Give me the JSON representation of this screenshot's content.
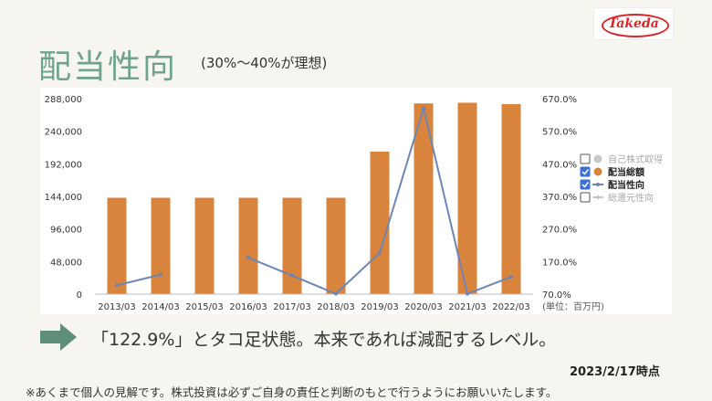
{
  "page": {
    "title": "配当性向",
    "subtitle": "(30%〜40%が理想)",
    "logo_text": "Takeda",
    "comment": "「122.9%」とタコ足状態。本来であれば減配するレベル。",
    "as_of": "2023/2/17時点",
    "footnote": "※あくまで個人の見解です。株式投資は必ずご自身の責任と判断のもとで行うようにお願いいたします。"
  },
  "colors": {
    "title": "#6fa38f",
    "bar": "#d9843d",
    "line": "#6e86b4",
    "arrow": "#5e8f78",
    "brand": "#d8262b"
  },
  "chart_data": {
    "type": "bar",
    "categories": [
      "2013/03",
      "2014/03",
      "2015/03",
      "2016/03",
      "2017/03",
      "2018/03",
      "2019/03",
      "2020/03",
      "2021/03",
      "2022/03"
    ],
    "series": [
      {
        "name": "配当総額",
        "type": "bar",
        "axis": "left",
        "values": [
          142000,
          142000,
          142000,
          142000,
          142000,
          142000,
          210000,
          281000,
          282000,
          280000
        ]
      },
      {
        "name": "配当性向",
        "type": "line",
        "axis": "right",
        "values": [
          97,
          130,
          null,
          182,
          127,
          71,
          197,
          641,
          71,
          123
        ]
      }
    ],
    "left_axis": {
      "ticks": [
        "288,000",
        "240,000",
        "192,000",
        "144,000",
        "96,000",
        "48,000",
        "0"
      ],
      "ylim": [
        0,
        288000
      ]
    },
    "right_axis": {
      "ticks": [
        "670.0%",
        "570.0%",
        "470.0%",
        "370.0%",
        "270.0%",
        "170.0%",
        "70.0%"
      ],
      "ylim": [
        70,
        670
      ]
    },
    "unit_label": "(単位：百万円)",
    "legend": {
      "placement": "right",
      "items": [
        {
          "label": "自己株式取得",
          "checked": false,
          "marker": "dot",
          "color": "#c8c8c8",
          "active": false
        },
        {
          "label": "配当総額",
          "checked": true,
          "marker": "dot",
          "color": "#d9843d",
          "active": true
        },
        {
          "label": "配当性向",
          "checked": true,
          "marker": "line",
          "color": "#6e86b4",
          "active": true
        },
        {
          "label": "総還元性向",
          "checked": false,
          "marker": "line",
          "color": "#c8c8c8",
          "active": false
        }
      ]
    },
    "grid": false
  }
}
